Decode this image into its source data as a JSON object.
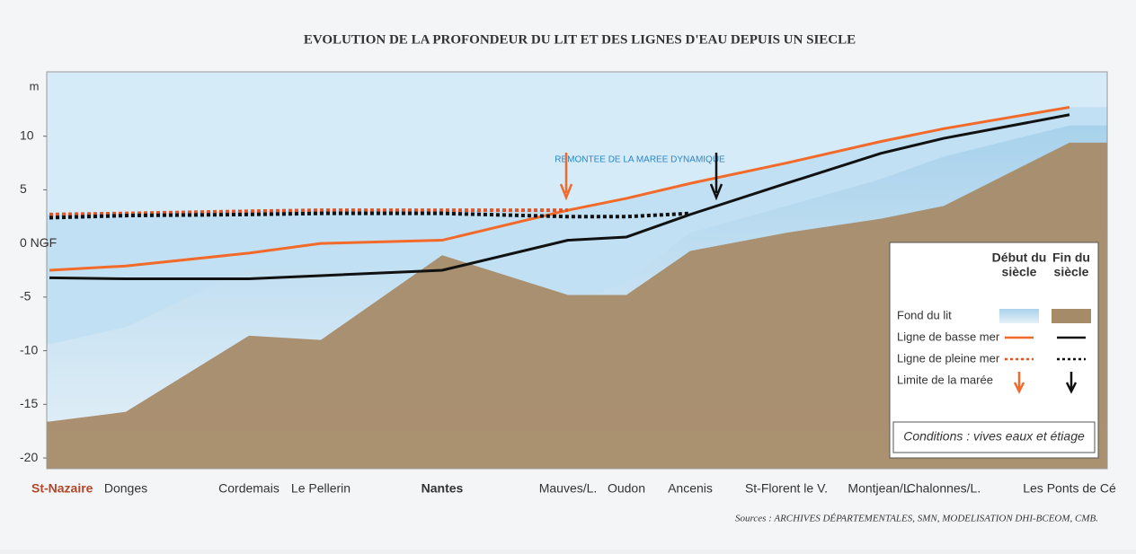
{
  "chart_data": {
    "type": "line",
    "title": "EVOLUTION DE LA PROFONDEUR DU LIT ET DES LIGNES D'EAU DEPUIS UN SIECLE",
    "y_label": "m",
    "categories": [
      "St-Nazaire",
      "Donges",
      "Cordemais",
      "Le Pellerin",
      "Nantes",
      "Mauves/L.",
      "Oudon",
      "Ancenis",
      "St-Florent le V.",
      "Montjean/L.",
      "Chalonnes/L.",
      "Les Ponts de Cé"
    ],
    "ylim": [
      -21,
      16
    ],
    "yticks": [
      10,
      5,
      {
        "value": 0,
        "label": "0 NGF"
      },
      -5,
      -10,
      -15,
      -20
    ],
    "series": [
      {
        "color": "#8fc3e3",
        "values": [
          -9.4,
          -7.8,
          -2.3,
          -2.3,
          -4,
          -5.7,
          -3.6,
          1,
          3.5,
          6,
          8.1,
          11
        ]
      },
      {
        "color": "#a68b68",
        "values": [
          -16.6,
          -15.7,
          -8.6,
          -9,
          -1.1,
          -4.8,
          -4.8,
          -0.7,
          1,
          2.3,
          3.5,
          9.4
        ]
      },
      {
        "color": "#f26a2a",
        "values": [
          -2.5,
          -2.1,
          -0.9,
          0,
          0.3,
          3.1,
          4.2,
          5.6,
          7.5,
          9.5,
          10.7,
          12.7
        ]
      },
      {
        "color": "#111111",
        "values": [
          -3.2,
          -3.3,
          -3.3,
          -3,
          -2.5,
          0.3,
          0.6,
          2.7,
          5.6,
          8.4,
          9.8,
          12
        ]
      },
      {
        "color": "#e0552a",
        "dashed": true,
        "values": [
          2.7,
          2.8,
          3,
          3.1,
          3.1,
          3.1,
          null,
          null,
          null,
          null,
          null,
          null
        ]
      },
      {
        "color": "#111111",
        "dashed": true,
        "values": [
          2.4,
          2.6,
          2.7,
          2.8,
          2.8,
          2.5,
          2.5,
          2.8,
          null,
          null,
          null,
          null
        ]
      }
    ],
    "annotation": "REMONTEE DE LA MAREE DYNAMIQUE",
    "legend": {
      "columns": [
        [
          "Début du",
          "siècle"
        ],
        [
          "Fin du",
          "siècle"
        ]
      ],
      "rows": [
        "Fond du lit",
        "Ligne de basse mer",
        "Ligne de pleine mer",
        "Limite de la marée"
      ],
      "footer": "Conditions : vives eaux et étiage"
    },
    "source": "Sources : ARCHIVES DÉPARTEMENTALES, SMN, MODELISATION DHI-BCEOM, CMB."
  }
}
